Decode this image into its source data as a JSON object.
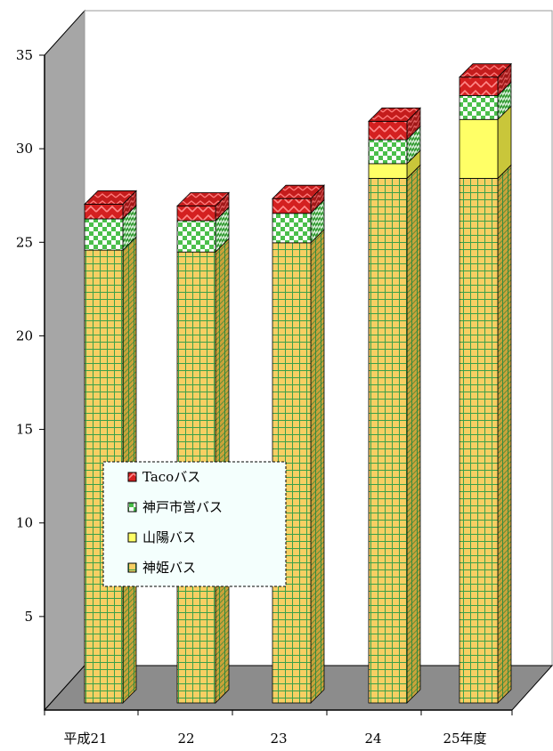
{
  "chart_data": {
    "type": "bar",
    "stacked": true,
    "three_d": true,
    "categories": [
      "平成21",
      "22",
      "23",
      "24",
      "25年度"
    ],
    "series": [
      {
        "name": "神姫バス",
        "values": [
          24.6,
          24.5,
          25.0,
          28.5,
          28.5
        ],
        "color": "#f5c34a"
      },
      {
        "name": "山陽バス",
        "values": [
          0,
          0,
          0,
          0.8,
          3.2
        ],
        "color": "#ffff66"
      },
      {
        "name": "神戸市営バス",
        "values": [
          1.7,
          1.7,
          1.6,
          1.3,
          1.3
        ],
        "color": "#5fc15a"
      },
      {
        "name": "Tacoバス",
        "values": [
          0.8,
          0.8,
          0.8,
          1.0,
          1.0
        ],
        "color": "#e02020"
      }
    ],
    "ylim": [
      0,
      35
    ],
    "yticks": [
      "5",
      "10",
      "15",
      "20",
      "25",
      "30",
      "35"
    ],
    "legend_position": "center-left",
    "legend_order": [
      "Tacoバス",
      "神戸市営バス",
      "山陽バス",
      "神姫バス"
    ]
  }
}
